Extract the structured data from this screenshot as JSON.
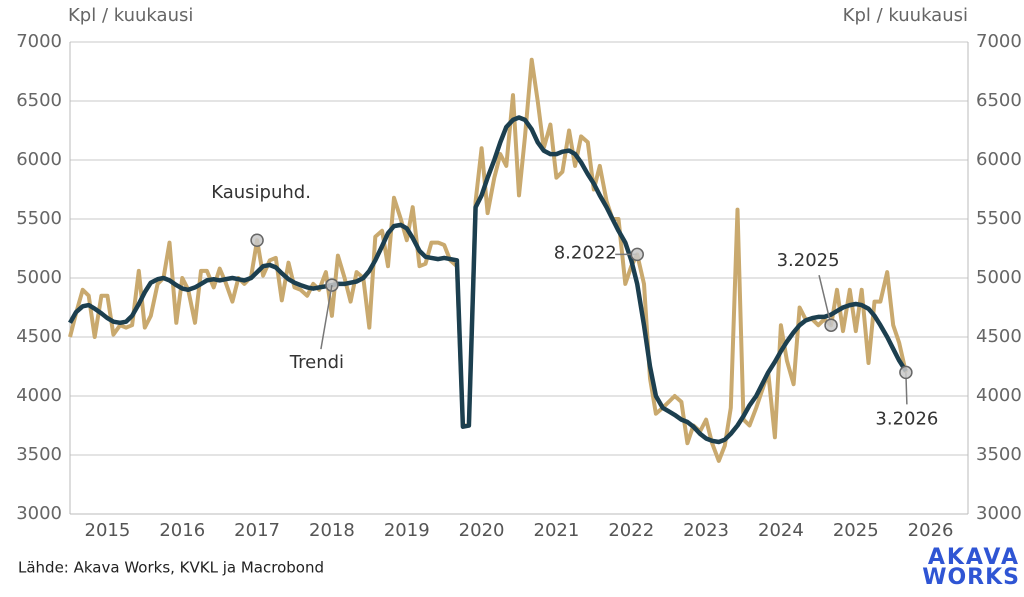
{
  "chart_data": {
    "type": "line",
    "ylabel": "Kpl / kuukausi",
    "y2label": "Kpl / kuukausi",
    "source": "Lähde: Akava Works, KVKL ja Macrobond",
    "logo": [
      "AKAVA",
      "WORKS"
    ],
    "xlim": [
      2015,
      2027
    ],
    "xticks": [
      {
        "value": 2015.5,
        "label": "2015"
      },
      {
        "value": 2016.5,
        "label": "2016"
      },
      {
        "value": 2017.5,
        "label": "2017"
      },
      {
        "value": 2018.5,
        "label": "2018"
      },
      {
        "value": 2019.5,
        "label": "2019"
      },
      {
        "value": 2020.5,
        "label": "2020"
      },
      {
        "value": 2021.5,
        "label": "2021"
      },
      {
        "value": 2022.5,
        "label": "2022"
      },
      {
        "value": 2023.5,
        "label": "2023"
      },
      {
        "value": 2024.5,
        "label": "2024"
      },
      {
        "value": 2025.5,
        "label": "2025"
      },
      {
        "value": 2026.5,
        "label": "2026"
      }
    ],
    "ylim": [
      3000,
      7000
    ],
    "yticks": [
      3000,
      3500,
      4000,
      4500,
      5000,
      5500,
      6000,
      6500,
      7000
    ],
    "y2lim": [
      3000,
      7000
    ],
    "y2ticks": [
      3000,
      3500,
      4000,
      4500,
      5000,
      5500,
      6000,
      6500,
      7000
    ],
    "grid": true,
    "x": [
      2015.0,
      2015.08,
      2015.17,
      2015.25,
      2015.33,
      2015.42,
      2015.5,
      2015.58,
      2015.67,
      2015.75,
      2015.83,
      2015.92,
      2016.0,
      2016.08,
      2016.17,
      2016.25,
      2016.33,
      2016.42,
      2016.5,
      2016.58,
      2016.67,
      2016.75,
      2016.83,
      2016.92,
      2017.0,
      2017.08,
      2017.17,
      2017.25,
      2017.33,
      2017.42,
      2017.5,
      2017.58,
      2017.67,
      2017.75,
      2017.83,
      2017.92,
      2018.0,
      2018.08,
      2018.17,
      2018.25,
      2018.33,
      2018.42,
      2018.5,
      2018.58,
      2018.67,
      2018.75,
      2018.83,
      2018.92,
      2019.0,
      2019.08,
      2019.17,
      2019.25,
      2019.33,
      2019.42,
      2019.5,
      2019.58,
      2019.67,
      2019.75,
      2019.83,
      2019.92,
      2020.0,
      2020.08,
      2020.17,
      2020.25,
      2020.33,
      2020.42,
      2020.5,
      2020.58,
      2020.67,
      2020.75,
      2020.83,
      2020.92,
      2021.0,
      2021.08,
      2021.17,
      2021.25,
      2021.33,
      2021.42,
      2021.5,
      2021.58,
      2021.67,
      2021.75,
      2021.83,
      2021.92,
      2022.0,
      2022.08,
      2022.17,
      2022.25,
      2022.33,
      2022.42,
      2022.5,
      2022.58,
      2022.67,
      2022.75,
      2022.83,
      2022.92,
      2023.0,
      2023.08,
      2023.17,
      2023.25,
      2023.33,
      2023.42,
      2023.5,
      2023.58,
      2023.67,
      2023.75,
      2023.83,
      2023.92,
      2024.0,
      2024.08,
      2024.17,
      2024.25,
      2024.33,
      2024.42,
      2024.5,
      2024.58,
      2024.67,
      2024.75,
      2024.83,
      2024.92,
      2025.0,
      2025.08,
      2025.17,
      2025.25,
      2025.33,
      2025.42,
      2025.5,
      2025.58,
      2025.67,
      2025.75,
      2025.83,
      2025.92,
      2026.0,
      2026.08,
      2026.17
    ],
    "series": [
      {
        "name": "Kausipuhd.",
        "color": "#c9a96e",
        "label_point": {
          "x": 2017.5,
          "y": 5320
        },
        "values": [
          4500,
          4700,
          4900,
          4850,
          4500,
          4850,
          4850,
          4520,
          4600,
          4580,
          4600,
          5060,
          4580,
          4680,
          4950,
          5000,
          5300,
          4620,
          5000,
          4900,
          4620,
          5060,
          5060,
          4920,
          5080,
          4960,
          4800,
          5000,
          4950,
          5010,
          5320,
          5020,
          5150,
          5170,
          4810,
          5130,
          4920,
          4900,
          4850,
          4950,
          4900,
          5050,
          4680,
          5190,
          5000,
          4800,
          5050,
          5000,
          4580,
          5350,
          5400,
          5100,
          5680,
          5500,
          5320,
          5600,
          5100,
          5120,
          5300,
          5300,
          5280,
          5150,
          5100,
          3750,
          3750,
          5650,
          6100,
          5550,
          5850,
          6050,
          5950,
          6550,
          5700,
          6200,
          6850,
          6500,
          6100,
          6300,
          5850,
          5900,
          6250,
          5950,
          6200,
          6150,
          5750,
          5950,
          5650,
          5500,
          5500,
          4950,
          5100,
          5200,
          4950,
          4150,
          3850,
          3900,
          3950,
          4000,
          3950,
          3600,
          3750,
          3700,
          3800,
          3600,
          3450,
          3580,
          3900,
          5580,
          3800,
          3750,
          3900,
          4050,
          4200,
          3650,
          4600,
          4300,
          4100,
          4750,
          4650,
          4650,
          4600,
          4650,
          4600,
          4900,
          4550,
          4900,
          4550,
          4900,
          4280,
          4800,
          4800,
          5050,
          4600,
          4450,
          4200
        ]
      },
      {
        "name": "Trendi",
        "color": "#1c3f4f",
        "label_point": {
          "x": 2018.5,
          "y": 4940
        },
        "values": [
          4620,
          4710,
          4760,
          4770,
          4740,
          4700,
          4660,
          4630,
          4620,
          4630,
          4680,
          4780,
          4880,
          4960,
          4990,
          5000,
          4980,
          4940,
          4910,
          4900,
          4920,
          4950,
          4980,
          4990,
          4980,
          4990,
          5000,
          4990,
          4980,
          5000,
          5050,
          5100,
          5110,
          5090,
          5040,
          4990,
          4960,
          4940,
          4920,
          4910,
          4920,
          4930,
          4940,
          4950,
          4950,
          4960,
          4970,
          5000,
          5060,
          5150,
          5270,
          5380,
          5440,
          5450,
          5420,
          5340,
          5230,
          5180,
          5170,
          5160,
          5170,
          5160,
          5150,
          3740,
          3750,
          5600,
          5700,
          5850,
          6000,
          6150,
          6280,
          6340,
          6360,
          6340,
          6260,
          6150,
          6080,
          6050,
          6050,
          6070,
          6080,
          6050,
          5980,
          5880,
          5800,
          5700,
          5600,
          5500,
          5400,
          5300,
          5150,
          4950,
          4600,
          4250,
          4000,
          3900,
          3870,
          3840,
          3800,
          3780,
          3740,
          3680,
          3640,
          3620,
          3610,
          3630,
          3680,
          3750,
          3830,
          3920,
          4000,
          4100,
          4200,
          4290,
          4380,
          4460,
          4540,
          4600,
          4640,
          4660,
          4670,
          4670,
          4690,
          4720,
          4750,
          4770,
          4780,
          4770,
          4740,
          4680,
          4600,
          4500,
          4400,
          4300,
          4210
        ]
      }
    ],
    "annotations": [
      {
        "text": "8.2022",
        "x": 2022.58,
        "y": 5200
      },
      {
        "text": "3.2025",
        "x": 2025.17,
        "y": 4600
      },
      {
        "text": "3.2026",
        "x": 2026.17,
        "y": 4200
      }
    ]
  }
}
